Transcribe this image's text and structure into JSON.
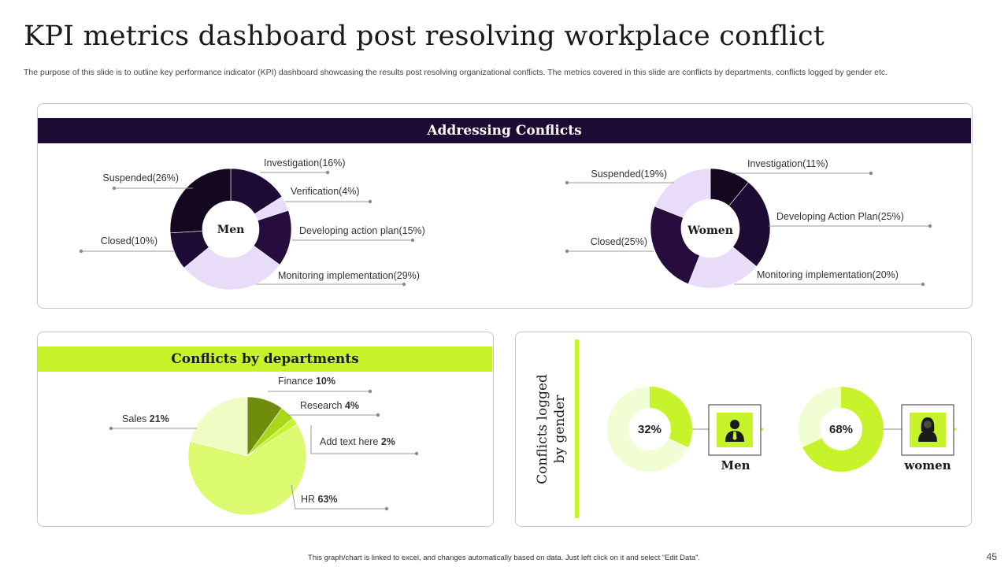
{
  "title": "KPI metrics dashboard post resolving workplace conflict",
  "subtitle": "The purpose of this slide is to outline key performance indicator (KPI) dashboard showcasing the results post resolving organizational conflicts. The metrics covered in this slide are conflicts by departments, conflicts logged by gender etc.",
  "footer": "This graph/chart is linked to excel, and changes automatically based on data. Just left click on it and select “Edit Data”.",
  "page_number": "45",
  "colors": {
    "dark": "#1e0b33",
    "lavender": "#e8dcf8",
    "green": "#c6f32a"
  },
  "sections": {
    "addressing": "Addressing Conflicts",
    "departments": "Conflicts by departments",
    "gender": "Conflicts logged by gender"
  },
  "chart_data": [
    {
      "type": "pie",
      "variant": "donut",
      "center_label": "Men",
      "slices": [
        {
          "label": "Investigation(16%)",
          "value": 16,
          "color": "#1e0b33"
        },
        {
          "label": "Verification(4%)",
          "value": 4,
          "color": "#e8dcf8"
        },
        {
          "label": "Developing  action plan(15%)",
          "value": 15,
          "color": "#260d3d"
        },
        {
          "label": "Monitoring  implementation(29%)",
          "value": 29,
          "color": "#e8dcf8"
        },
        {
          "label": "Closed(10%)",
          "value": 10,
          "color": "#1e0b33"
        },
        {
          "label": "Suspended(26%)",
          "value": 26,
          "color": "#140720"
        }
      ]
    },
    {
      "type": "pie",
      "variant": "donut",
      "center_label": "Women",
      "slices": [
        {
          "label": "Investigation(11%)",
          "value": 11,
          "color": "#140720"
        },
        {
          "label": "Developing  Action Plan(25%)",
          "value": 25,
          "color": "#1e0b33"
        },
        {
          "label": "Monitoring  implementation(20%)",
          "value": 20,
          "color": "#e8dcf8"
        },
        {
          "label": "Closed(25%)",
          "value": 25,
          "color": "#260d3d"
        },
        {
          "label": "Suspended(19%)",
          "value": 19,
          "color": "#e8dcf8"
        }
      ]
    },
    {
      "type": "pie",
      "slices": [
        {
          "name": "Finance",
          "value": 10,
          "value_label": "10%",
          "color": "#6f8c0c"
        },
        {
          "name": "Research",
          "value": 4,
          "value_label": "4%",
          "color": "#a8d81a"
        },
        {
          "name": "Add text here",
          "value": 2,
          "value_label": "2%",
          "color": "#c6f32a"
        },
        {
          "name": "HR",
          "value": 63,
          "value_label": "63%",
          "color": "#dcfa70"
        },
        {
          "name": "Sales",
          "value": 21,
          "value_label": "21%",
          "color": "#effcc4"
        }
      ]
    },
    {
      "type": "pie",
      "variant": "donut",
      "series": [
        {
          "name": "Men",
          "value": 32,
          "value_label": "32%",
          "icon": "man-icon"
        },
        {
          "name": "women",
          "value": 68,
          "value_label": "68%",
          "icon": "woman-icon"
        }
      ]
    }
  ]
}
